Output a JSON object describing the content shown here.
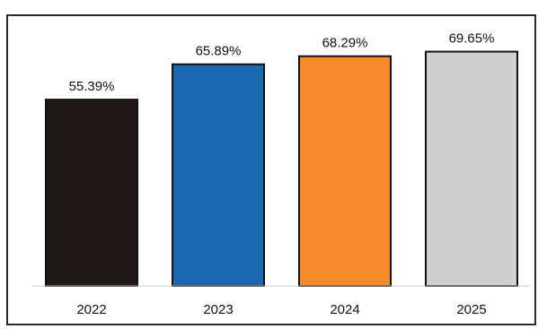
{
  "chart_data": {
    "type": "bar",
    "categories": [
      "2022",
      "2023",
      "2024",
      "2025"
    ],
    "values": [
      55.39,
      65.89,
      68.29,
      69.65
    ],
    "data_labels": [
      "55.39%",
      "65.89%",
      "68.29%",
      "69.65%"
    ],
    "bar_colors": [
      "#1f1a17",
      "#1a68b0",
      "#f78a2a",
      "#cfcfcf"
    ],
    "bar_edge_color": "#111111",
    "title": "",
    "xlabel": "",
    "ylabel": "",
    "ylim": [
      0,
      85
    ],
    "grid": false,
    "legend": "none"
  }
}
